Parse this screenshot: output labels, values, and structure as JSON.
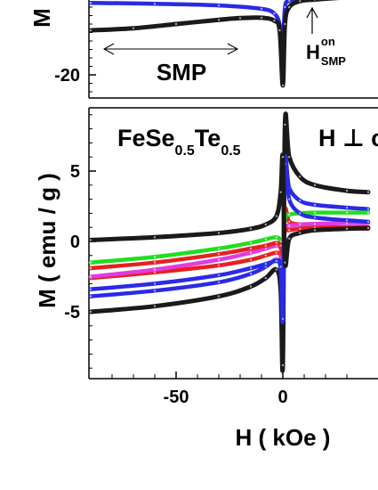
{
  "colors": {
    "black": "#1a1a1a",
    "blue": "#2a2ae6",
    "red": "#e62020",
    "green": "#22dd22",
    "magenta": "#e03ce0",
    "axis": "#000000"
  },
  "chart_data": [
    {
      "type": "line",
      "title": "",
      "ylabel": "M",
      "xlim": [
        -90,
        40
      ],
      "ylim": [
        -24,
        0
      ],
      "y_ticks": [
        {
          "value": -20,
          "label": "-20"
        }
      ],
      "annotations": {
        "smp_label": "SMP",
        "hon_main": "H",
        "hon_sup": "on",
        "hon_sub": "SMP"
      },
      "series": [
        {
          "color": "blue",
          "x": [
            -90,
            -60,
            -30,
            -10,
            -4,
            -1.5,
            0,
            1,
            3,
            8,
            15,
            30,
            40
          ],
          "y": [
            -3,
            -3.2,
            -3.6,
            -4.4,
            -5.5,
            -8,
            -13,
            -4,
            -2.5,
            -1.8,
            -1.4,
            -1.0,
            -0.8
          ]
        },
        {
          "color": "black",
          "x": [
            -90,
            -70,
            -50,
            -30,
            -20,
            -10,
            -4,
            -1.5,
            0,
            1,
            3,
            8,
            15,
            30,
            40
          ],
          "y": [
            -9.5,
            -9.0,
            -8.0,
            -7.0,
            -6.6,
            -6.5,
            -7.2,
            -9.5,
            -22.5,
            -8,
            -4,
            -2.6,
            -2.2,
            -1.7,
            -1.5
          ]
        }
      ]
    },
    {
      "type": "line",
      "title": "",
      "xlabel": "H ( kOe )",
      "ylabel": "M ( emu / g )",
      "xlim": [
        -90,
        40
      ],
      "ylim": [
        -9.5,
        9.5
      ],
      "x_ticks": [
        {
          "value": -50,
          "label": "-50"
        },
        {
          "value": 0,
          "label": "0"
        }
      ],
      "y_ticks": [
        {
          "value": 5,
          "label": "5"
        },
        {
          "value": 0,
          "label": "0"
        },
        {
          "value": -5,
          "label": "-5"
        }
      ],
      "annotations": {
        "formula": {
          "el1": "FeSe",
          "sub1": "0.5",
          "el2": "Te",
          "sub2": "0.5"
        },
        "orientation": "H ⊥ c"
      },
      "series": [
        {
          "color": "black",
          "x": [
            -90,
            -60,
            -30,
            -15,
            -8,
            -3,
            -1,
            0,
            1,
            3,
            8,
            15,
            30,
            40
          ],
          "y": [
            -5.0,
            -4.6,
            -3.9,
            -3.2,
            -2.6,
            -2.0,
            -3.5,
            -8.8,
            8.3,
            6.0,
            4.6,
            4.0,
            3.6,
            3.5
          ]
        },
        {
          "color": "blue",
          "x": [
            -90,
            -60,
            -30,
            -15,
            -8,
            -3,
            -1,
            0,
            1,
            3,
            8,
            15,
            30,
            40
          ],
          "y": [
            -3.9,
            -3.5,
            -2.9,
            -2.3,
            -1.8,
            -1.3,
            -2.0,
            -5.5,
            5.6,
            3.8,
            2.9,
            2.6,
            2.4,
            2.3
          ]
        },
        {
          "color": "red",
          "x": [
            -90,
            -60,
            -30,
            -15,
            -8,
            -3,
            -1,
            0,
            1,
            3,
            8,
            15,
            30,
            40
          ],
          "y": [
            -2.6,
            -2.2,
            -1.7,
            -1.3,
            -1.0,
            -0.8,
            -1.0,
            -2.2,
            2.2,
            1.4,
            1.2,
            1.1,
            0.95,
            0.9
          ]
        },
        {
          "color": "green",
          "x": [
            -90,
            -60,
            -30,
            -15,
            -8,
            -3,
            -1,
            0,
            1,
            3,
            8,
            15,
            30,
            40
          ],
          "y": [
            -1.5,
            -1.1,
            -0.5,
            -0.1,
            0.15,
            0.3,
            0.0,
            -1.1,
            1.6,
            1.9,
            2.0,
            2.05,
            2.05,
            2.05
          ]
        },
        {
          "color": "magenta",
          "x": [
            -90,
            -60,
            -30,
            -15,
            -8,
            -3,
            -1,
            0,
            1,
            3,
            8,
            15,
            30,
            40
          ],
          "y": [
            -2.5,
            -2.0,
            -1.3,
            -0.8,
            -0.5,
            -0.3,
            -0.5,
            -1.3,
            0.9,
            1.1,
            1.2,
            1.25,
            1.3,
            1.3
          ]
        },
        {
          "color": "red",
          "x": [
            -90,
            -60,
            -30,
            -15,
            -8,
            -3,
            -1,
            0,
            1,
            3,
            8,
            15,
            30,
            40
          ],
          "y": [
            -1.9,
            -1.5,
            -0.9,
            -0.5,
            -0.3,
            -0.1,
            -0.3,
            -0.9,
            0.7,
            0.8,
            0.9,
            0.95,
            1.0,
            1.0
          ]
        },
        {
          "color": "blue",
          "x": [
            -90,
            -60,
            -30,
            -15,
            -8,
            -3,
            -1,
            0,
            1,
            3,
            8,
            15,
            30,
            40
          ],
          "y": [
            -3.4,
            -3.0,
            -2.4,
            -1.9,
            -1.6,
            -1.4,
            -1.8,
            -5.5,
            5.5,
            3.0,
            2.0,
            1.7,
            1.5,
            1.4
          ]
        },
        {
          "color": "black",
          "x": [
            -90,
            -60,
            -30,
            -15,
            -8,
            -3,
            -1,
            0,
            1,
            3,
            8,
            15,
            30,
            40
          ],
          "y": [
            0.1,
            0.3,
            0.6,
            0.9,
            1.2,
            1.8,
            3.5,
            6.0,
            -1.5,
            0.2,
            0.6,
            0.8,
            0.9,
            0.95
          ]
        }
      ]
    }
  ]
}
